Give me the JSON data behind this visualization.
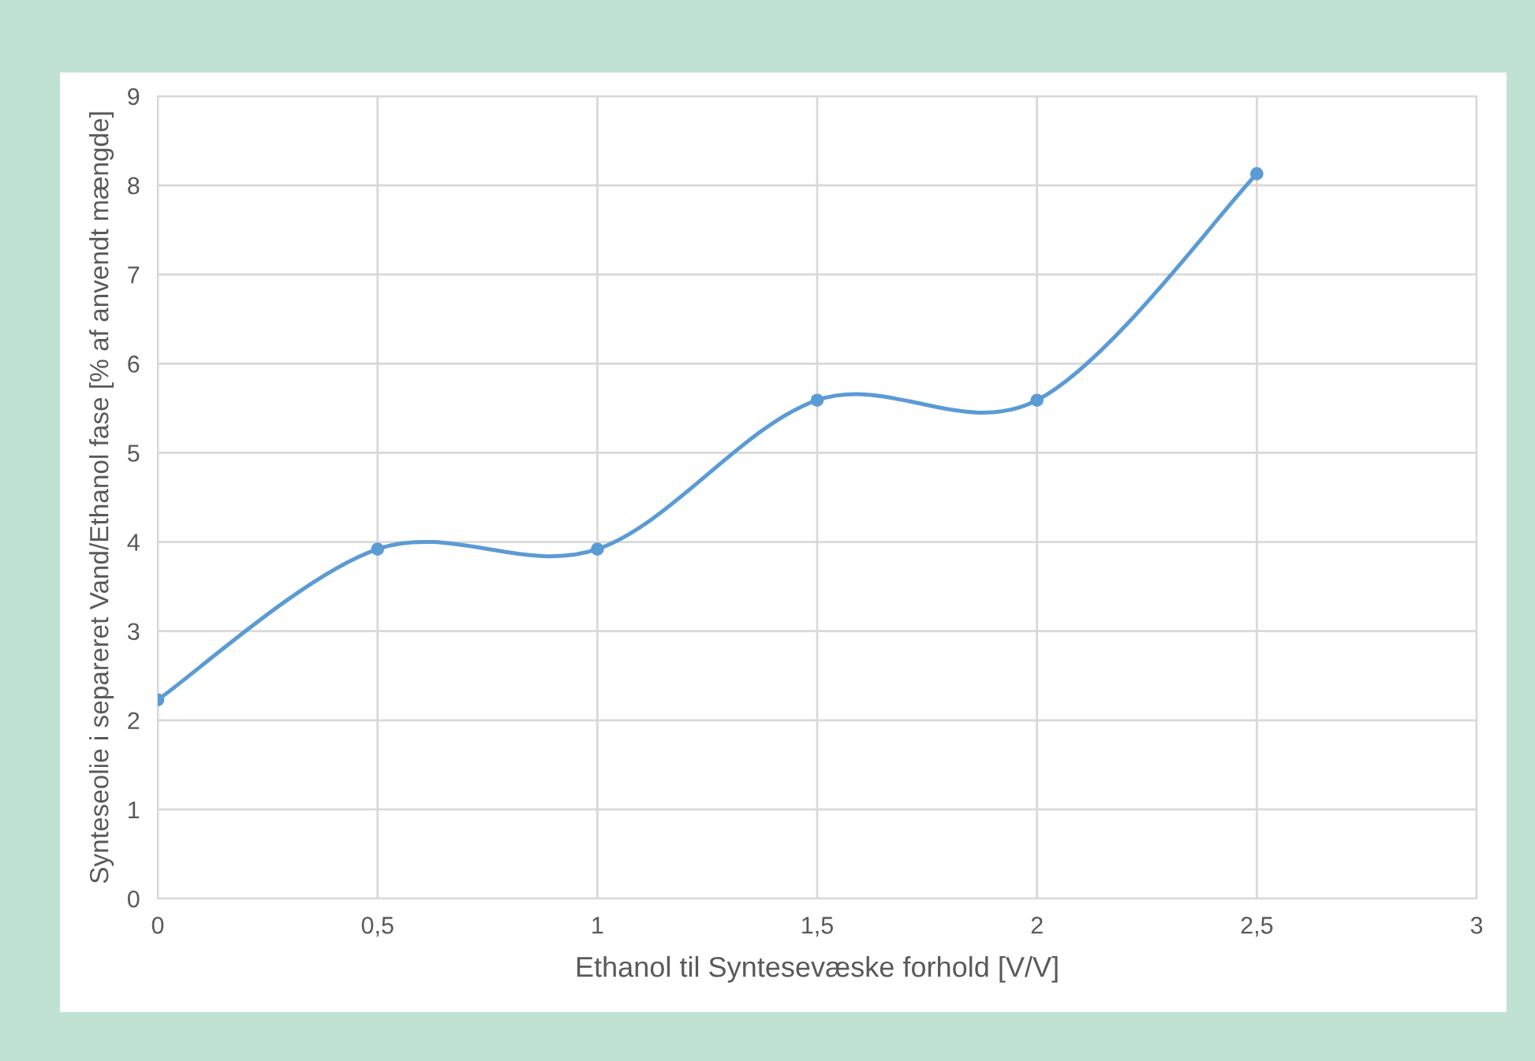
{
  "chart_data": {
    "type": "line",
    "xlabel": "Ethanol til Syntesevæske forhold [V/V]",
    "ylabel": "Synteseolie i separeret Vand/Ethanol fase [% af anvendt mængde]",
    "x": [
      0,
      0.5,
      1,
      1.5,
      2,
      2.5
    ],
    "series": [
      {
        "color": "#5b9bd5",
        "values": [
          2.23,
          3.92,
          3.92,
          5.59,
          5.59,
          8.13
        ]
      }
    ],
    "xlim": [
      0,
      3
    ],
    "xticks": [
      0,
      {
        "value": 0.5,
        "label": "0,5"
      },
      1,
      {
        "value": 1.5,
        "label": "1,5"
      },
      2,
      {
        "value": 2.5,
        "label": "2,5"
      },
      3
    ],
    "ylim": [
      0,
      9
    ],
    "yticks": [
      0,
      1,
      2,
      3,
      4,
      5,
      6,
      7,
      8,
      9
    ],
    "grid": true,
    "marker": "circle",
    "line_style": "solid"
  }
}
